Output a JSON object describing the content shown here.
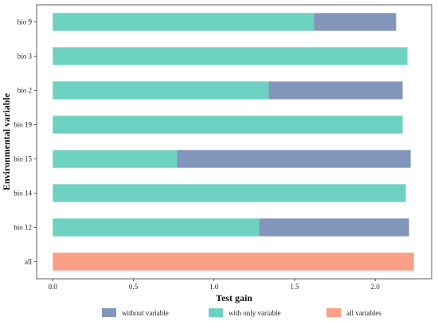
{
  "chart_data": {
    "type": "bar",
    "orientation": "horizontal",
    "stacked": true,
    "xlabel": "Test gain",
    "ylabel": "Environmental variable",
    "xlim": [
      -0.1,
      2.35
    ],
    "xticks": [
      "0.0",
      "0.5",
      "1.0",
      "1.5",
      "2.0"
    ],
    "xtick_values": [
      0,
      0.5,
      1.0,
      1.5,
      2.0
    ],
    "grid": false,
    "legend_position": "bottom",
    "categories": [
      "bio 9",
      "bio 3",
      "bio 2",
      "bio 19",
      "bio 15",
      "bio 14",
      "bio 12",
      "all"
    ],
    "series": [
      {
        "name": "with only variable",
        "color": "#6dd2c2",
        "values": [
          1.62,
          2.2,
          1.34,
          2.17,
          0.77,
          2.19,
          1.28,
          0
        ]
      },
      {
        "name": "without variable",
        "color": "#8296bb",
        "values": [
          0.51,
          0,
          0.83,
          0,
          1.45,
          0,
          0.93,
          0
        ]
      },
      {
        "name": "all variables",
        "color": "#f9a086",
        "values": [
          0,
          0,
          0,
          0,
          0,
          0,
          0,
          2.24
        ]
      }
    ],
    "legend": [
      {
        "label": "without variable",
        "color": "#8296bb"
      },
      {
        "label": "with only variable",
        "color": "#6dd2c2"
      },
      {
        "label": "all variables",
        "color": "#f9a086"
      }
    ]
  }
}
